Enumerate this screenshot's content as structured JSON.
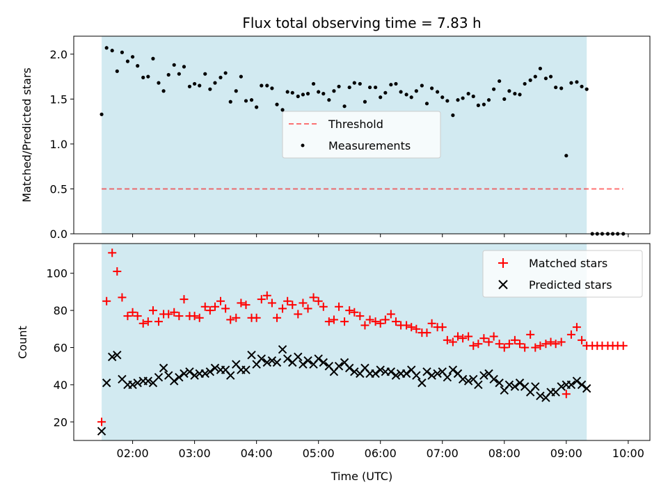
{
  "title": "Flux total observing time = 7.83 h",
  "colors": {
    "shade": "#add8e6",
    "threshold": "#ff0000",
    "measurements": "#000000",
    "matched": "#ff0000",
    "predicted": "#000000"
  },
  "chart_data": [
    {
      "type": "scatter",
      "position": "top",
      "title": "Flux total observing time = 7.83 h",
      "xlabel": "",
      "ylabel": "Matched/Predicted stars",
      "x_unit": "hours UTC",
      "xlim": [
        1.05,
        10.35
      ],
      "ylim": [
        0.0,
        2.2
      ],
      "yticks": [
        0.0,
        0.5,
        1.0,
        1.5,
        2.0
      ],
      "ytick_labels": [
        "0.0",
        "0.5",
        "1.0",
        "1.5",
        "2.0"
      ],
      "xticks": [
        2,
        3,
        4,
        5,
        6,
        7,
        8,
        9,
        10
      ],
      "shaded_interval": [
        1.5,
        9.33
      ],
      "legend": {
        "placement": "center",
        "entries": [
          "Threshold",
          "Measurements"
        ]
      },
      "series": [
        {
          "name": "Threshold",
          "style": "dashed-line",
          "x": [
            1.5,
            9.92
          ],
          "y": [
            0.5,
            0.5
          ]
        },
        {
          "name": "Measurements",
          "style": "dots",
          "x": [
            1.5,
            1.58,
            1.67,
            1.75,
            1.83,
            1.92,
            2.0,
            2.08,
            2.17,
            2.25,
            2.33,
            2.42,
            2.5,
            2.58,
            2.67,
            2.75,
            2.83,
            2.92,
            3.0,
            3.08,
            3.17,
            3.25,
            3.33,
            3.42,
            3.5,
            3.58,
            3.67,
            3.75,
            3.83,
            3.92,
            4.0,
            4.08,
            4.17,
            4.25,
            4.33,
            4.42,
            4.5,
            4.58,
            4.67,
            4.75,
            4.83,
            4.92,
            5.0,
            5.08,
            5.17,
            5.25,
            5.33,
            5.42,
            5.5,
            5.58,
            5.67,
            5.75,
            5.83,
            5.92,
            6.0,
            6.08,
            6.17,
            6.25,
            6.33,
            6.42,
            6.5,
            6.58,
            6.67,
            6.75,
            6.83,
            6.92,
            7.0,
            7.08,
            7.17,
            7.25,
            7.33,
            7.42,
            7.5,
            7.58,
            7.67,
            7.75,
            7.83,
            7.92,
            8.0,
            8.08,
            8.17,
            8.25,
            8.33,
            8.42,
            8.5,
            8.58,
            8.67,
            8.75,
            8.83,
            8.92,
            9.0,
            9.08,
            9.17,
            9.25,
            9.33,
            9.42,
            9.5,
            9.58,
            9.67,
            9.75,
            9.83,
            9.92
          ],
          "y": [
            1.33,
            2.07,
            2.04,
            1.81,
            2.02,
            1.92,
            1.97,
            1.87,
            1.74,
            1.75,
            1.95,
            1.68,
            1.59,
            1.77,
            1.88,
            1.78,
            1.86,
            1.64,
            1.67,
            1.65,
            1.78,
            1.61,
            1.68,
            1.74,
            1.79,
            1.47,
            1.59,
            1.75,
            1.48,
            1.49,
            1.41,
            1.65,
            1.65,
            1.62,
            1.44,
            1.38,
            1.58,
            1.57,
            1.53,
            1.55,
            1.56,
            1.67,
            1.58,
            1.56,
            1.49,
            1.59,
            1.64,
            1.42,
            1.63,
            1.68,
            1.67,
            1.47,
            1.63,
            1.63,
            1.52,
            1.57,
            1.66,
            1.67,
            1.58,
            1.55,
            1.52,
            1.59,
            1.65,
            1.45,
            1.62,
            1.58,
            1.52,
            1.48,
            1.32,
            1.49,
            1.51,
            1.56,
            1.53,
            1.43,
            1.44,
            1.49,
            1.61,
            1.7,
            1.5,
            1.59,
            1.56,
            1.55,
            1.67,
            1.71,
            1.75,
            1.84,
            1.73,
            1.75,
            1.63,
            1.62,
            0.87,
            1.68,
            1.69,
            1.64,
            1.61,
            0.0,
            0.0,
            0.0,
            0.0,
            0.0,
            0.0,
            0.0
          ]
        }
      ]
    },
    {
      "type": "scatter",
      "position": "bottom",
      "title": "",
      "xlabel": "Time (UTC)",
      "ylabel": "Count",
      "x_unit": "hours UTC",
      "xlim": [
        1.05,
        10.35
      ],
      "ylim": [
        10,
        116
      ],
      "yticks": [
        20,
        40,
        60,
        80,
        100
      ],
      "ytick_labels": [
        "20",
        "40",
        "60",
        "80",
        "100"
      ],
      "xticks": [
        2,
        3,
        4,
        5,
        6,
        7,
        8,
        9,
        10
      ],
      "xtick_labels": [
        "02:00",
        "03:00",
        "04:00",
        "05:00",
        "06:00",
        "07:00",
        "08:00",
        "09:00",
        "10:00"
      ],
      "shaded_interval": [
        1.5,
        9.33
      ],
      "legend": {
        "placement": "top-right",
        "entries": [
          "Matched stars",
          "Predicted stars"
        ]
      },
      "series": [
        {
          "name": "Matched stars",
          "marker": "plus",
          "x": [
            1.5,
            1.58,
            1.67,
            1.75,
            1.83,
            1.92,
            2.0,
            2.08,
            2.17,
            2.25,
            2.33,
            2.42,
            2.5,
            2.58,
            2.67,
            2.75,
            2.83,
            2.92,
            3.0,
            3.08,
            3.17,
            3.25,
            3.33,
            3.42,
            3.5,
            3.58,
            3.67,
            3.75,
            3.83,
            3.92,
            4.0,
            4.08,
            4.17,
            4.25,
            4.33,
            4.42,
            4.5,
            4.58,
            4.67,
            4.75,
            4.83,
            4.92,
            5.0,
            5.08,
            5.17,
            5.25,
            5.33,
            5.42,
            5.5,
            5.58,
            5.67,
            5.75,
            5.83,
            5.92,
            6.0,
            6.08,
            6.17,
            6.25,
            6.33,
            6.42,
            6.5,
            6.58,
            6.67,
            6.75,
            6.83,
            6.92,
            7.0,
            7.08,
            7.17,
            7.25,
            7.33,
            7.42,
            7.5,
            7.58,
            7.67,
            7.75,
            7.83,
            7.92,
            8.0,
            8.08,
            8.17,
            8.25,
            8.33,
            8.42,
            8.5,
            8.58,
            8.67,
            8.75,
            8.83,
            8.92,
            9.0,
            9.08,
            9.17,
            9.25,
            9.33,
            9.42,
            9.5,
            9.58,
            9.67,
            9.75,
            9.83,
            9.92
          ],
          "y": [
            20,
            85,
            111,
            101,
            87,
            77,
            79,
            77,
            73,
            74,
            80,
            74,
            78,
            78,
            79,
            77,
            86,
            77,
            77,
            76,
            82,
            80,
            82,
            85,
            81,
            75,
            76,
            84,
            83,
            76,
            76,
            86,
            88,
            84,
            76,
            81,
            85,
            83,
            78,
            84,
            81,
            87,
            85,
            82,
            74,
            75,
            82,
            74,
            80,
            79,
            77,
            72,
            75,
            74,
            73,
            75,
            78,
            74,
            72,
            72,
            71,
            70,
            68,
            68,
            73,
            71,
            71,
            64,
            63,
            66,
            65,
            66,
            61,
            62,
            65,
            63,
            66,
            62,
            60,
            62,
            64,
            62,
            60,
            67,
            60,
            61,
            62,
            63,
            62,
            63,
            35,
            67,
            71,
            64,
            61,
            61,
            61,
            61,
            61,
            61,
            61,
            61
          ]
        },
        {
          "name": "Predicted stars",
          "marker": "x",
          "x": [
            1.5,
            1.58,
            1.67,
            1.75,
            1.83,
            1.92,
            2.0,
            2.08,
            2.17,
            2.25,
            2.33,
            2.42,
            2.5,
            2.58,
            2.67,
            2.75,
            2.83,
            2.92,
            3.0,
            3.08,
            3.17,
            3.25,
            3.33,
            3.42,
            3.5,
            3.58,
            3.67,
            3.75,
            3.83,
            3.92,
            4.0,
            4.08,
            4.17,
            4.25,
            4.33,
            4.42,
            4.5,
            4.58,
            4.67,
            4.75,
            4.83,
            4.92,
            5.0,
            5.08,
            5.17,
            5.25,
            5.33,
            5.42,
            5.5,
            5.58,
            5.67,
            5.75,
            5.83,
            5.92,
            6.0,
            6.08,
            6.17,
            6.25,
            6.33,
            6.42,
            6.5,
            6.58,
            6.67,
            6.75,
            6.83,
            6.92,
            7.0,
            7.08,
            7.17,
            7.25,
            7.33,
            7.42,
            7.5,
            7.58,
            7.67,
            7.75,
            7.83,
            7.92,
            8.0,
            8.08,
            8.17,
            8.25,
            8.33,
            8.42,
            8.5,
            8.58,
            8.67,
            8.75,
            8.83,
            8.92,
            9.0,
            9.08,
            9.17,
            9.25,
            9.33
          ],
          "y": [
            15,
            41,
            55,
            56,
            43,
            40,
            40,
            41,
            42,
            42,
            41,
            44,
            49,
            45,
            42,
            44,
            46,
            47,
            45,
            46,
            46,
            47,
            49,
            48,
            48,
            45,
            51,
            48,
            48,
            56,
            51,
            54,
            52,
            53,
            52,
            59,
            54,
            52,
            55,
            51,
            53,
            51,
            54,
            52,
            50,
            47,
            50,
            52,
            49,
            47,
            46,
            49,
            46,
            46,
            48,
            47,
            47,
            45,
            46,
            46,
            48,
            45,
            41,
            47,
            45,
            46,
            47,
            44,
            48,
            46,
            43,
            42,
            43,
            40,
            45,
            46,
            43,
            41,
            37,
            40,
            39,
            41,
            39,
            36,
            39,
            34,
            33,
            36,
            36,
            39,
            40,
            40,
            42,
            40,
            38
          ]
        }
      ]
    }
  ]
}
